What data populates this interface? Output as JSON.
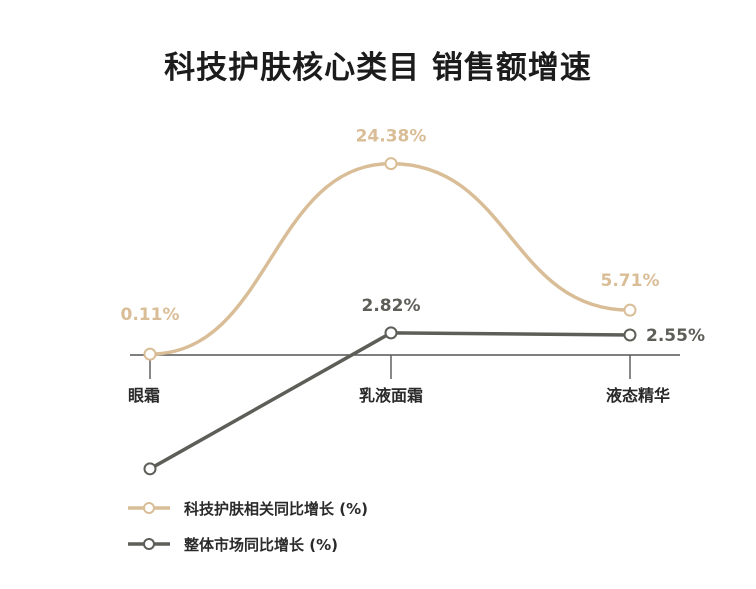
{
  "chart_data": {
    "type": "line",
    "title": "科技护肤核心类目 销售额增速",
    "categories": [
      "眼霜",
      "乳液面霜",
      "液态精华"
    ],
    "series": [
      {
        "name": "科技护肤相关同比增长 (%)",
        "values": [
          0.11,
          24.38,
          5.71
        ],
        "labels": [
          "0.11%",
          "24.38%",
          "5.71%"
        ],
        "color": "#d9bd97",
        "smooth": true
      },
      {
        "name": "整体市场同比增长 (%)",
        "values": [
          -14.5,
          2.82,
          2.55
        ],
        "labels": [
          "",
          "2.82%",
          "2.55%"
        ],
        "color": "#5e5e58",
        "smooth": false
      }
    ],
    "legend_position": "bottom-left",
    "grid": false
  }
}
